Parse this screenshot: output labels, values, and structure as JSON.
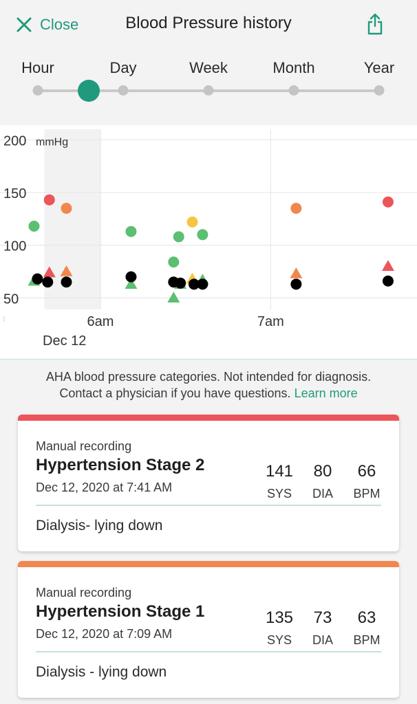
{
  "header": {
    "close_label": "Close",
    "title": "Blood Pressure history",
    "share_icon": "share-icon"
  },
  "range_selector": {
    "options": [
      "Hour",
      "Day",
      "Week",
      "Month",
      "Year"
    ],
    "selected_position": 0.15
  },
  "colors": {
    "accent": "#1f9a7c",
    "normal": "#5cbf72",
    "elevated": "#f6c542",
    "stage1": "#f0874e",
    "stage2": "#ec5559",
    "pulse": "#000000"
  },
  "chart_data": {
    "type": "scatter",
    "unit": "mmHg",
    "yticks": [
      200,
      150,
      100,
      50
    ],
    "ylim": [
      43,
      210
    ],
    "xlim": [
      5.41,
      7.86
    ],
    "xticks": [
      {
        "t": 6.0,
        "label": "6am"
      },
      {
        "t": 7.0,
        "label": "7am"
      }
    ],
    "date_label": "Dec 12",
    "shaded_range": [
      5.67,
      6.0
    ],
    "series": [
      {
        "name": "SYS",
        "marker": "circle",
        "points": [
          {
            "t": 5.61,
            "v": 118,
            "c": "normal"
          },
          {
            "t": 5.7,
            "v": 143,
            "c": "stage2"
          },
          {
            "t": 5.8,
            "v": 135,
            "c": "stage1"
          },
          {
            "t": 6.18,
            "v": 113,
            "c": "normal"
          },
          {
            "t": 6.43,
            "v": 84,
            "c": "normal"
          },
          {
            "t": 6.46,
            "v": 108,
            "c": "normal"
          },
          {
            "t": 6.54,
            "v": 122,
            "c": "elevated"
          },
          {
            "t": 6.6,
            "v": 110,
            "c": "normal"
          },
          {
            "t": 7.15,
            "v": 135,
            "c": "stage1"
          },
          {
            "t": 7.69,
            "v": 141,
            "c": "stage2"
          }
        ]
      },
      {
        "name": "DIA",
        "marker": "triangle",
        "points": [
          {
            "t": 5.61,
            "v": 66,
            "c": "normal"
          },
          {
            "t": 5.7,
            "v": 74,
            "c": "stage2"
          },
          {
            "t": 5.8,
            "v": 75,
            "c": "stage1"
          },
          {
            "t": 6.18,
            "v": 63,
            "c": "normal"
          },
          {
            "t": 6.43,
            "v": 50,
            "c": "normal"
          },
          {
            "t": 6.47,
            "v": 63,
            "c": "normal"
          },
          {
            "t": 6.54,
            "v": 68,
            "c": "elevated"
          },
          {
            "t": 6.6,
            "v": 67,
            "c": "normal"
          },
          {
            "t": 7.15,
            "v": 73,
            "c": "stage1"
          },
          {
            "t": 7.69,
            "v": 80,
            "c": "stage2"
          }
        ]
      },
      {
        "name": "BPM",
        "marker": "circle",
        "points": [
          {
            "t": 5.63,
            "v": 68,
            "c": "pulse"
          },
          {
            "t": 5.69,
            "v": 65,
            "c": "pulse"
          },
          {
            "t": 5.8,
            "v": 65,
            "c": "pulse"
          },
          {
            "t": 6.18,
            "v": 70,
            "c": "pulse"
          },
          {
            "t": 6.43,
            "v": 65,
            "c": "pulse"
          },
          {
            "t": 6.47,
            "v": 64,
            "c": "pulse"
          },
          {
            "t": 6.55,
            "v": 63,
            "c": "pulse"
          },
          {
            "t": 6.6,
            "v": 63,
            "c": "pulse"
          },
          {
            "t": 7.15,
            "v": 63,
            "c": "pulse"
          },
          {
            "t": 7.69,
            "v": 66,
            "c": "pulse"
          }
        ]
      }
    ]
  },
  "disclaimer": {
    "line1": "AHA blood pressure categories. Not intended for diagnosis.",
    "line2": "Contact a physician if you have questions.",
    "link": "Learn more"
  },
  "records": [
    {
      "color": "#ec5559",
      "source": "Manual recording",
      "category": "Hypertension Stage 2",
      "date": "Dec 12, 2020 at 7:41 AM",
      "sys": "141",
      "sys_label": "SYS",
      "dia": "80",
      "dia_label": "DIA",
      "bpm": "66",
      "bpm_label": "BPM",
      "note": "Dialysis- lying down"
    },
    {
      "color": "#f0874e",
      "source": "Manual recording",
      "category": "Hypertension Stage 1",
      "date": "Dec 12, 2020 at 7:09 AM",
      "sys": "135",
      "sys_label": "SYS",
      "dia": "73",
      "dia_label": "DIA",
      "bpm": "63",
      "bpm_label": "BPM",
      "note": "Dialysis - lying down"
    }
  ]
}
